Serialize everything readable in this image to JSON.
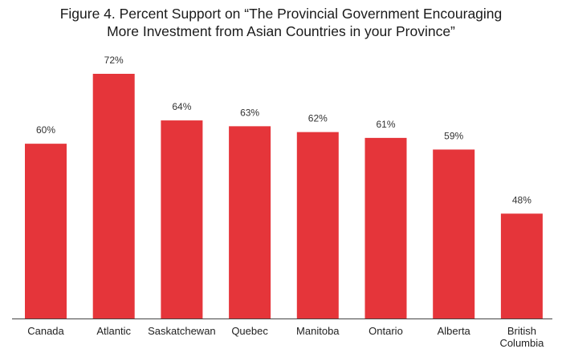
{
  "chart_data": {
    "type": "bar",
    "title_lines": [
      "Figure 4. Percent Support on “The Provincial Government Encouraging",
      "More Investment from Asian Countries in your Province”"
    ],
    "categories": [
      "Canada",
      "Atlantic",
      "Saskatchewan",
      "Quebec",
      "Manitoba",
      "Ontario",
      "Alberta",
      "British Columbia"
    ],
    "category_lines": [
      [
        "Canada"
      ],
      [
        "Atlantic"
      ],
      [
        "Saskatchewan"
      ],
      [
        "Quebec"
      ],
      [
        "Manitoba"
      ],
      [
        "Ontario"
      ],
      [
        "Alberta"
      ],
      [
        "British",
        "Columbia"
      ]
    ],
    "values": [
      60,
      72,
      64,
      63,
      62,
      61,
      59,
      48
    ],
    "value_labels": [
      "60%",
      "72%",
      "64%",
      "63%",
      "62%",
      "61%",
      "59%",
      "48%"
    ],
    "ylim": [
      30,
      72
    ],
    "grid": false,
    "bar_color": "#e5353a",
    "axis_color": "#444444"
  }
}
